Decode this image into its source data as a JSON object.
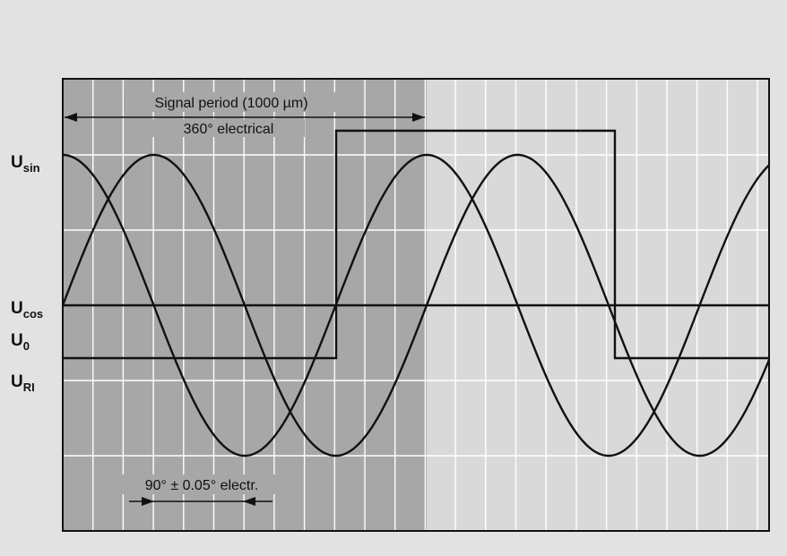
{
  "diagram": {
    "signal_labels": [
      {
        "id": "u_sin",
        "base": "U",
        "sub": "sin"
      },
      {
        "id": "u_cos",
        "base": "U",
        "sub": "cos"
      },
      {
        "id": "u_0",
        "base": "U",
        "sub": "0"
      },
      {
        "id": "u_ri",
        "base": "U",
        "sub": "RI"
      }
    ],
    "period_label": "Signal period (1000 µm)",
    "period_sublabel": "360° electrical",
    "phase_label": "90° ± 0.05° electr.",
    "colors": {
      "background": "#e2e2e3",
      "shaded_region": "#a7a7a8",
      "plot_area": "#d9d9da",
      "grid_line": "#ffffff",
      "trace": "#111111"
    }
  }
}
